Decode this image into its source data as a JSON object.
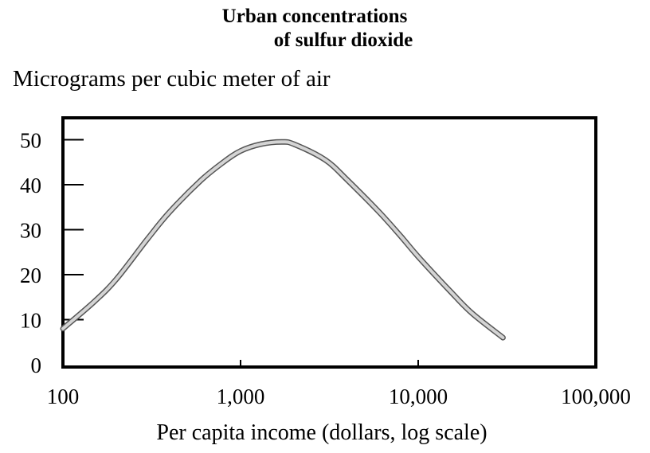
{
  "chart_data": {
    "type": "line",
    "title_line1": "Urban concentrations",
    "title_line2": "of sulfur dioxide",
    "ylabel": "Micrograms per cubic meter of air",
    "xlabel": "Per capita income (dollars, log scale)",
    "x_scale": "log",
    "xlim": [
      100,
      100000
    ],
    "ylim": [
      0,
      55
    ],
    "x_ticks": [
      100,
      1000,
      10000,
      100000
    ],
    "x_tick_labels": [
      "100",
      "1,000",
      "10,000",
      "100,000"
    ],
    "y_ticks": [
      0,
      10,
      20,
      30,
      40,
      50
    ],
    "y_tick_labels": [
      "0",
      "10",
      "20",
      "30",
      "40",
      "50"
    ],
    "grid": false,
    "legend": "none",
    "line_color": "#9a9a9a",
    "series": [
      {
        "x": [
          100,
          150,
          200,
          300,
          400,
          600,
          800,
          1000,
          1300,
          1700,
          2000,
          3000,
          4000,
          6000,
          8000,
          10000,
          15000,
          20000,
          30000
        ],
        "y": [
          8,
          14,
          19,
          28,
          34,
          41,
          45,
          47.5,
          49,
          49.5,
          49,
          45.5,
          41,
          34,
          28.5,
          24,
          16.5,
          11.5,
          6
        ]
      }
    ]
  }
}
